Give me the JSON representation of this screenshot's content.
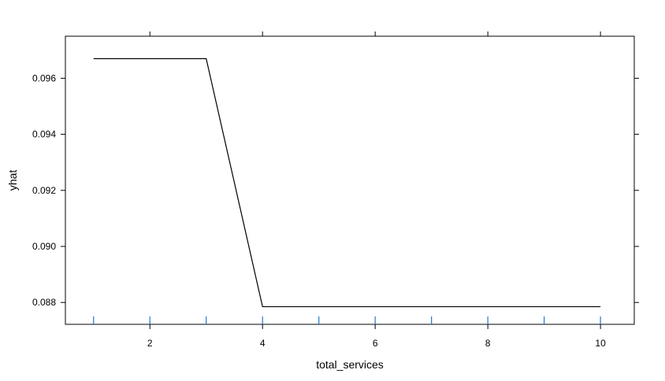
{
  "chart_data": {
    "type": "line",
    "title": "",
    "xlabel": "total_services",
    "ylabel": "yhat",
    "xlim": [
      0.5,
      10.6
    ],
    "ylim": [
      0.08722,
      0.0975
    ],
    "x_ticks": [
      2,
      4,
      6,
      8,
      10
    ],
    "y_ticks": [
      0.088,
      0.09,
      0.092,
      0.094,
      0.096
    ],
    "x_tick_labels": [
      "2",
      "4",
      "6",
      "8",
      "10"
    ],
    "y_tick_labels": [
      "0.088",
      "0.090",
      "0.092",
      "0.094",
      "0.096"
    ],
    "rug_x": [
      1,
      2,
      3,
      4,
      5,
      6,
      7,
      8,
      9,
      10
    ],
    "rug_color": "#1f78d4",
    "line_color": "#000000",
    "grid": false,
    "series": [
      {
        "x": [
          1,
          2,
          3,
          4,
          5,
          6,
          7,
          8,
          9,
          10
        ],
        "values": [
          0.0967,
          0.0967,
          0.0967,
          0.08785,
          0.08785,
          0.08785,
          0.08785,
          0.08785,
          0.08785,
          0.08785
        ]
      }
    ]
  }
}
